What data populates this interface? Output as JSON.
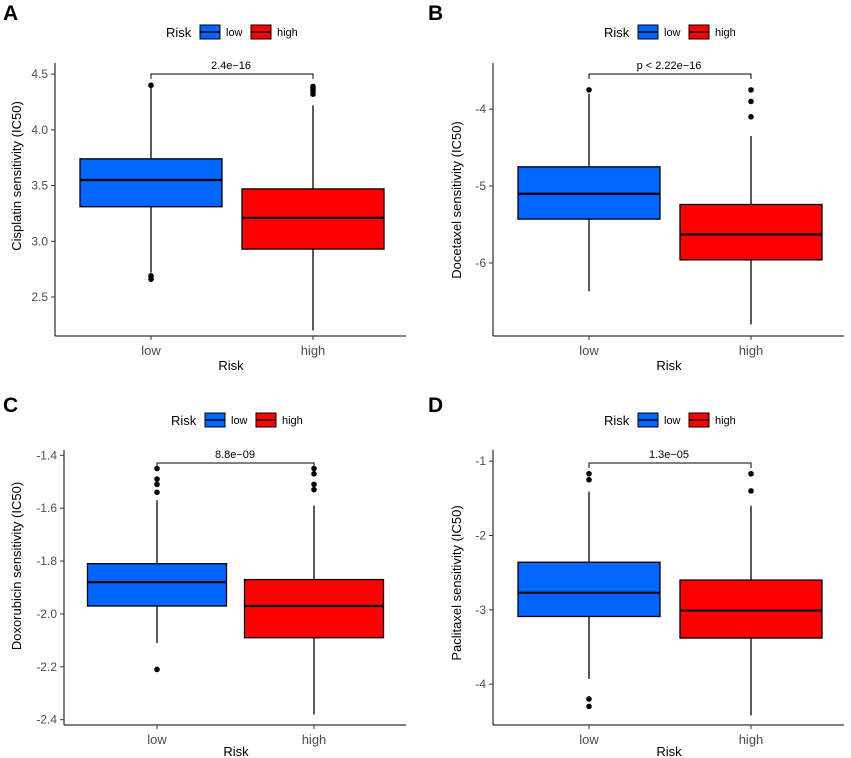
{
  "legend": {
    "title": "Risk",
    "items": [
      {
        "label": "low",
        "color": "#0066ff"
      },
      {
        "label": "high",
        "color": "#ff0000"
      }
    ]
  },
  "chart_data": [
    {
      "panel": "A",
      "type": "box",
      "title": "",
      "xlabel": "Risk",
      "ylabel": "Cisplatin sensitivity (IC50)",
      "categories": [
        "low",
        "high"
      ],
      "ylim": [
        2.15,
        4.6
      ],
      "yticks": [
        2.5,
        3.0,
        3.5,
        4.0,
        4.5
      ],
      "ytick_labels": [
        "2.5",
        "3.0",
        "3.5",
        "4.0",
        "4.5"
      ],
      "pvalue": "2.4e−16",
      "boxes": [
        {
          "group": "low",
          "color": "#0066ff",
          "whisker_low": 2.72,
          "q1": 3.31,
          "median": 3.55,
          "q3": 3.74,
          "whisker_high": 4.39,
          "outliers": [
            4.4,
            2.69,
            2.66
          ]
        },
        {
          "group": "high",
          "color": "#ff0000",
          "whisker_low": 2.2,
          "q1": 2.93,
          "median": 3.21,
          "q3": 3.47,
          "whisker_high": 4.22,
          "outliers": [
            4.32,
            4.35,
            4.37,
            4.39
          ]
        }
      ]
    },
    {
      "panel": "B",
      "type": "box",
      "title": "",
      "xlabel": "Risk",
      "ylabel": "Docetaxel sensitivity (IC50)",
      "categories": [
        "low",
        "high"
      ],
      "ylim": [
        -6.95,
        -3.4
      ],
      "yticks": [
        -6,
        -5,
        -4
      ],
      "ytick_labels": [
        "-6",
        "-5",
        "-4"
      ],
      "pvalue": "p < 2.22e−16",
      "boxes": [
        {
          "group": "low",
          "color": "#0066ff",
          "whisker_low": -6.37,
          "q1": -5.43,
          "median": -5.1,
          "q3": -4.75,
          "whisker_high": -3.8,
          "outliers": [
            -3.75
          ]
        },
        {
          "group": "high",
          "color": "#ff0000",
          "whisker_low": -6.8,
          "q1": -5.96,
          "median": -5.63,
          "q3": -5.24,
          "whisker_high": -4.35,
          "outliers": [
            -3.75,
            -3.9,
            -4.1
          ]
        }
      ]
    },
    {
      "panel": "C",
      "type": "box",
      "title": "",
      "xlabel": "Risk",
      "ylabel": "Doxorubicin sensitivity (IC50)",
      "categories": [
        "low",
        "high"
      ],
      "ylim": [
        -2.42,
        -1.38
      ],
      "yticks": [
        -2.4,
        -2.2,
        -2.0,
        -1.8,
        -1.6,
        -1.4
      ],
      "ytick_labels": [
        "-2.4",
        "-2.2",
        "-2.0",
        "-1.8",
        "-1.6",
        "-1.4"
      ],
      "pvalue": "8.8e−09",
      "boxes": [
        {
          "group": "low",
          "color": "#0066ff",
          "whisker_low": -2.11,
          "q1": -1.97,
          "median": -1.88,
          "q3": -1.81,
          "whisker_high": -1.57,
          "outliers": [
            -1.45,
            -1.49,
            -1.51,
            -1.54,
            -2.21
          ]
        },
        {
          "group": "high",
          "color": "#ff0000",
          "whisker_low": -2.38,
          "q1": -2.09,
          "median": -1.97,
          "q3": -1.87,
          "whisker_high": -1.59,
          "outliers": [
            -1.45,
            -1.47,
            -1.51,
            -1.53
          ]
        }
      ]
    },
    {
      "panel": "D",
      "type": "box",
      "title": "",
      "xlabel": "Risk",
      "ylabel": "Paclitaxel sensitivity (IC50)",
      "categories": [
        "low",
        "high"
      ],
      "ylim": [
        -4.55,
        -0.85
      ],
      "yticks": [
        -4,
        -3,
        -2,
        -1
      ],
      "ytick_labels": [
        "-4",
        "-3",
        "-2",
        "-1"
      ],
      "pvalue": "1.3e−05",
      "boxes": [
        {
          "group": "low",
          "color": "#0066ff",
          "whisker_low": -3.93,
          "q1": -3.09,
          "median": -2.77,
          "q3": -2.36,
          "whisker_high": -1.41,
          "outliers": [
            -1.17,
            -1.25,
            -4.2,
            -4.3
          ]
        },
        {
          "group": "high",
          "color": "#ff0000",
          "whisker_low": -4.42,
          "q1": -3.38,
          "median": -3.01,
          "q3": -2.6,
          "whisker_high": -1.6,
          "outliers": [
            -1.17,
            -1.4
          ]
        }
      ]
    }
  ]
}
